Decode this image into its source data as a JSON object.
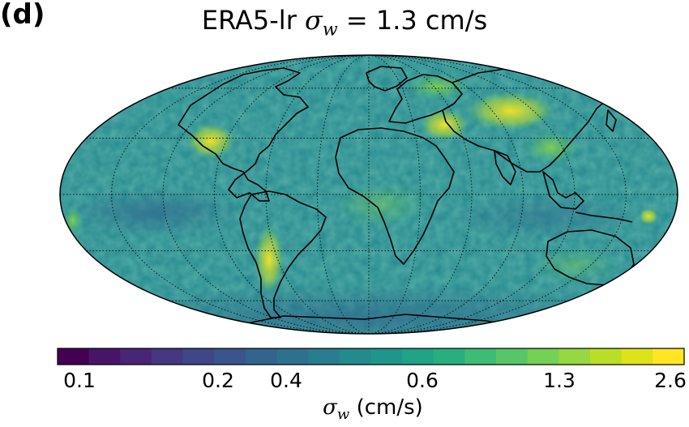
{
  "panel_label": "(d)",
  "title": {
    "prefix": "ERA5-lr ",
    "symbol": "σ",
    "subscript": "w",
    "suffix": " = 1.3 cm/s"
  },
  "map": {
    "projection": "Mollweide",
    "background_color": "#2a8a8a",
    "graticule": "dotted",
    "highlights": [
      {
        "region": "Western North America",
        "level": "high"
      },
      {
        "region": "Andes / Patagonia",
        "level": "high"
      },
      {
        "region": "Middle East / Iran",
        "level": "high"
      },
      {
        "region": "Central Asia / Tibet",
        "level": "high"
      },
      {
        "region": "Siberia",
        "level": "medium-high"
      },
      {
        "region": "Southern Ocean",
        "level": "low"
      },
      {
        "region": "Tropical Pacific",
        "level": "low"
      }
    ]
  },
  "colorbar": {
    "colormap": "viridis",
    "ticks": [
      "0.1",
      "0.2",
      "0.4",
      "0.6",
      "1.3",
      "2.6"
    ],
    "colors": [
      "#440154",
      "#481467",
      "#482576",
      "#453781",
      "#3f4788",
      "#39558c",
      "#32648e",
      "#2d718e",
      "#287d8e",
      "#238a8d",
      "#1f968b",
      "#20a386",
      "#29af7f",
      "#3dbc74",
      "#56c667",
      "#75d054",
      "#95d840",
      "#bade28",
      "#dde318",
      "#fde725"
    ],
    "label_symbol": "σ",
    "label_subscript": "w",
    "label_units": "  (cm/s)"
  }
}
